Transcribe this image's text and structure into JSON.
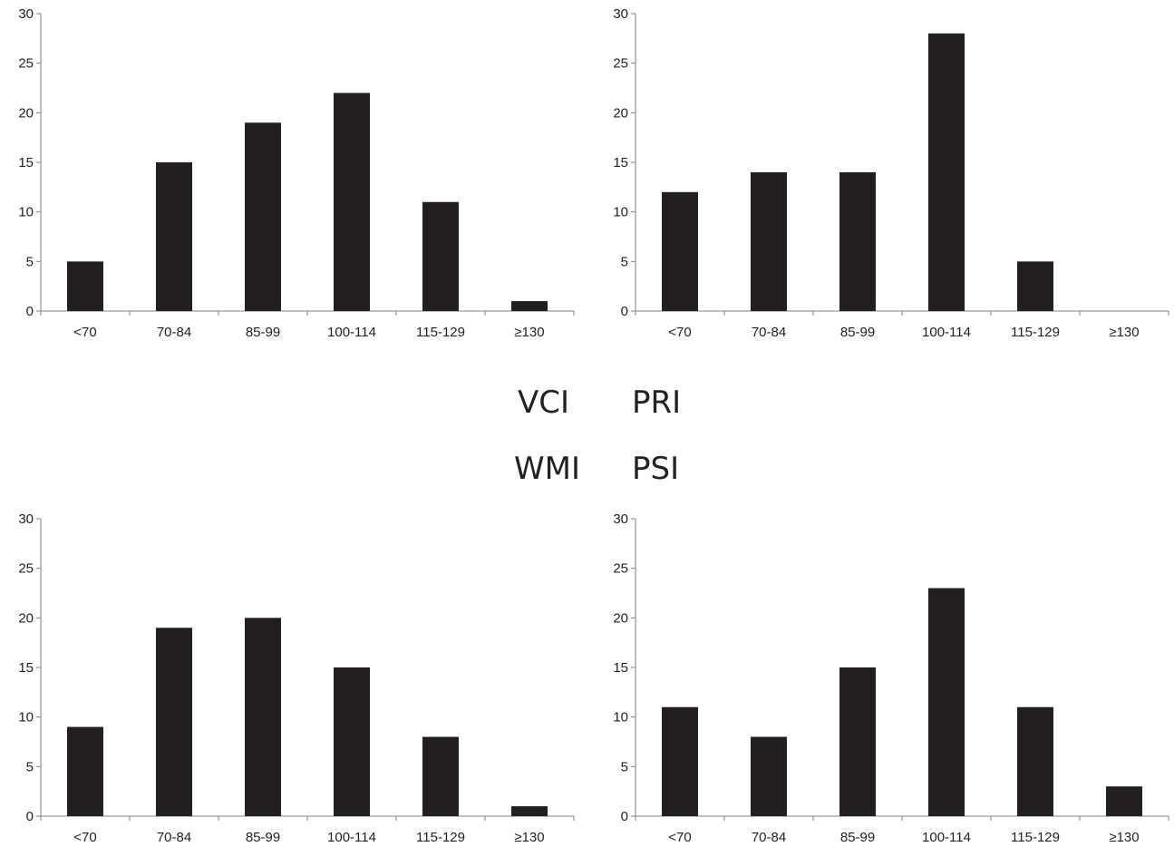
{
  "labels": {
    "vci": "VCI",
    "pri": "PRI",
    "wmi": "WMI",
    "psi": "PSI"
  },
  "colors": {
    "bar": "#231f20",
    "axis": "#7f7f7f",
    "text": "#222222"
  },
  "chart_data": [
    {
      "type": "bar",
      "title": "",
      "xlabel": "",
      "ylabel": "",
      "categories": [
        "<70",
        "70-84",
        "85-99",
        "100-114",
        "115-129",
        "≥130"
      ],
      "values": [
        5,
        15,
        19,
        22,
        11,
        1
      ],
      "ylim": [
        0,
        30
      ],
      "yticks": [
        0,
        5,
        10,
        15,
        20,
        25,
        30
      ],
      "grid": false
    },
    {
      "type": "bar",
      "title": "",
      "xlabel": "",
      "ylabel": "",
      "categories": [
        "<70",
        "70-84",
        "85-99",
        "100-114",
        "115-129",
        "≥130"
      ],
      "values": [
        12,
        14,
        14,
        28,
        5,
        0
      ],
      "ylim": [
        0,
        30
      ],
      "yticks": [
        0,
        5,
        10,
        15,
        20,
        25,
        30
      ],
      "grid": false
    },
    {
      "type": "bar",
      "title": "",
      "xlabel": "",
      "ylabel": "",
      "categories": [
        "<70",
        "70-84",
        "85-99",
        "100-114",
        "115-129",
        "≥130"
      ],
      "values": [
        9,
        19,
        20,
        15,
        8,
        1
      ],
      "ylim": [
        0,
        30
      ],
      "yticks": [
        0,
        5,
        10,
        15,
        20,
        25,
        30
      ],
      "grid": false
    },
    {
      "type": "bar",
      "title": "",
      "xlabel": "",
      "ylabel": "",
      "categories": [
        "<70",
        "70-84",
        "85-99",
        "100-114",
        "115-129",
        "≥130"
      ],
      "values": [
        11,
        8,
        15,
        23,
        11,
        3
      ],
      "ylim": [
        0,
        30
      ],
      "yticks": [
        0,
        5,
        10,
        15,
        20,
        25,
        30
      ],
      "grid": false
    }
  ]
}
